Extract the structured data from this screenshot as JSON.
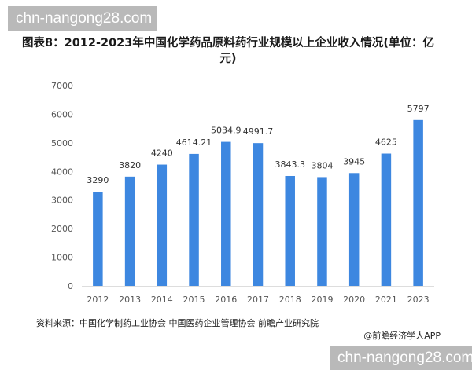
{
  "watermark": {
    "top_text": "chn-nangong28.com",
    "bottom_text": "chn-nangong28.com"
  },
  "source": "资料来源：中国化学制药工业协会 中国医药企业管理协会 前瞻产业研究院",
  "credit": "@前瞻经济学人APP",
  "colors": {
    "bar": "#3d87e0",
    "axis_text": "#555555",
    "grid": "#dddddd"
  },
  "chart_data": {
    "type": "bar",
    "title": "图表8：2012-2023年中国化学药品原料药行业规模以上企业收入情况(单位：亿元)",
    "categories": [
      "2012",
      "2013",
      "2014",
      "2015",
      "2016",
      "2017",
      "2018",
      "2019",
      "2020",
      "2021",
      "2023"
    ],
    "values": [
      3290,
      3820,
      4240,
      4614.21,
      5034.9,
      4991.7,
      3843.3,
      3804,
      3945,
      4625,
      5797
    ],
    "value_labels": [
      "3290",
      "3820",
      "4240",
      "4614.21",
      "5034.9",
      "4991.7",
      "3843.3",
      "3804",
      "3945",
      "4625",
      "5797"
    ],
    "yticks": [
      "0",
      "1000",
      "2000",
      "3000",
      "4000",
      "5000",
      "6000",
      "7000"
    ],
    "ylim": [
      0,
      7000
    ],
    "xlabel": "",
    "ylabel": "",
    "grid": false,
    "legend": "none"
  }
}
